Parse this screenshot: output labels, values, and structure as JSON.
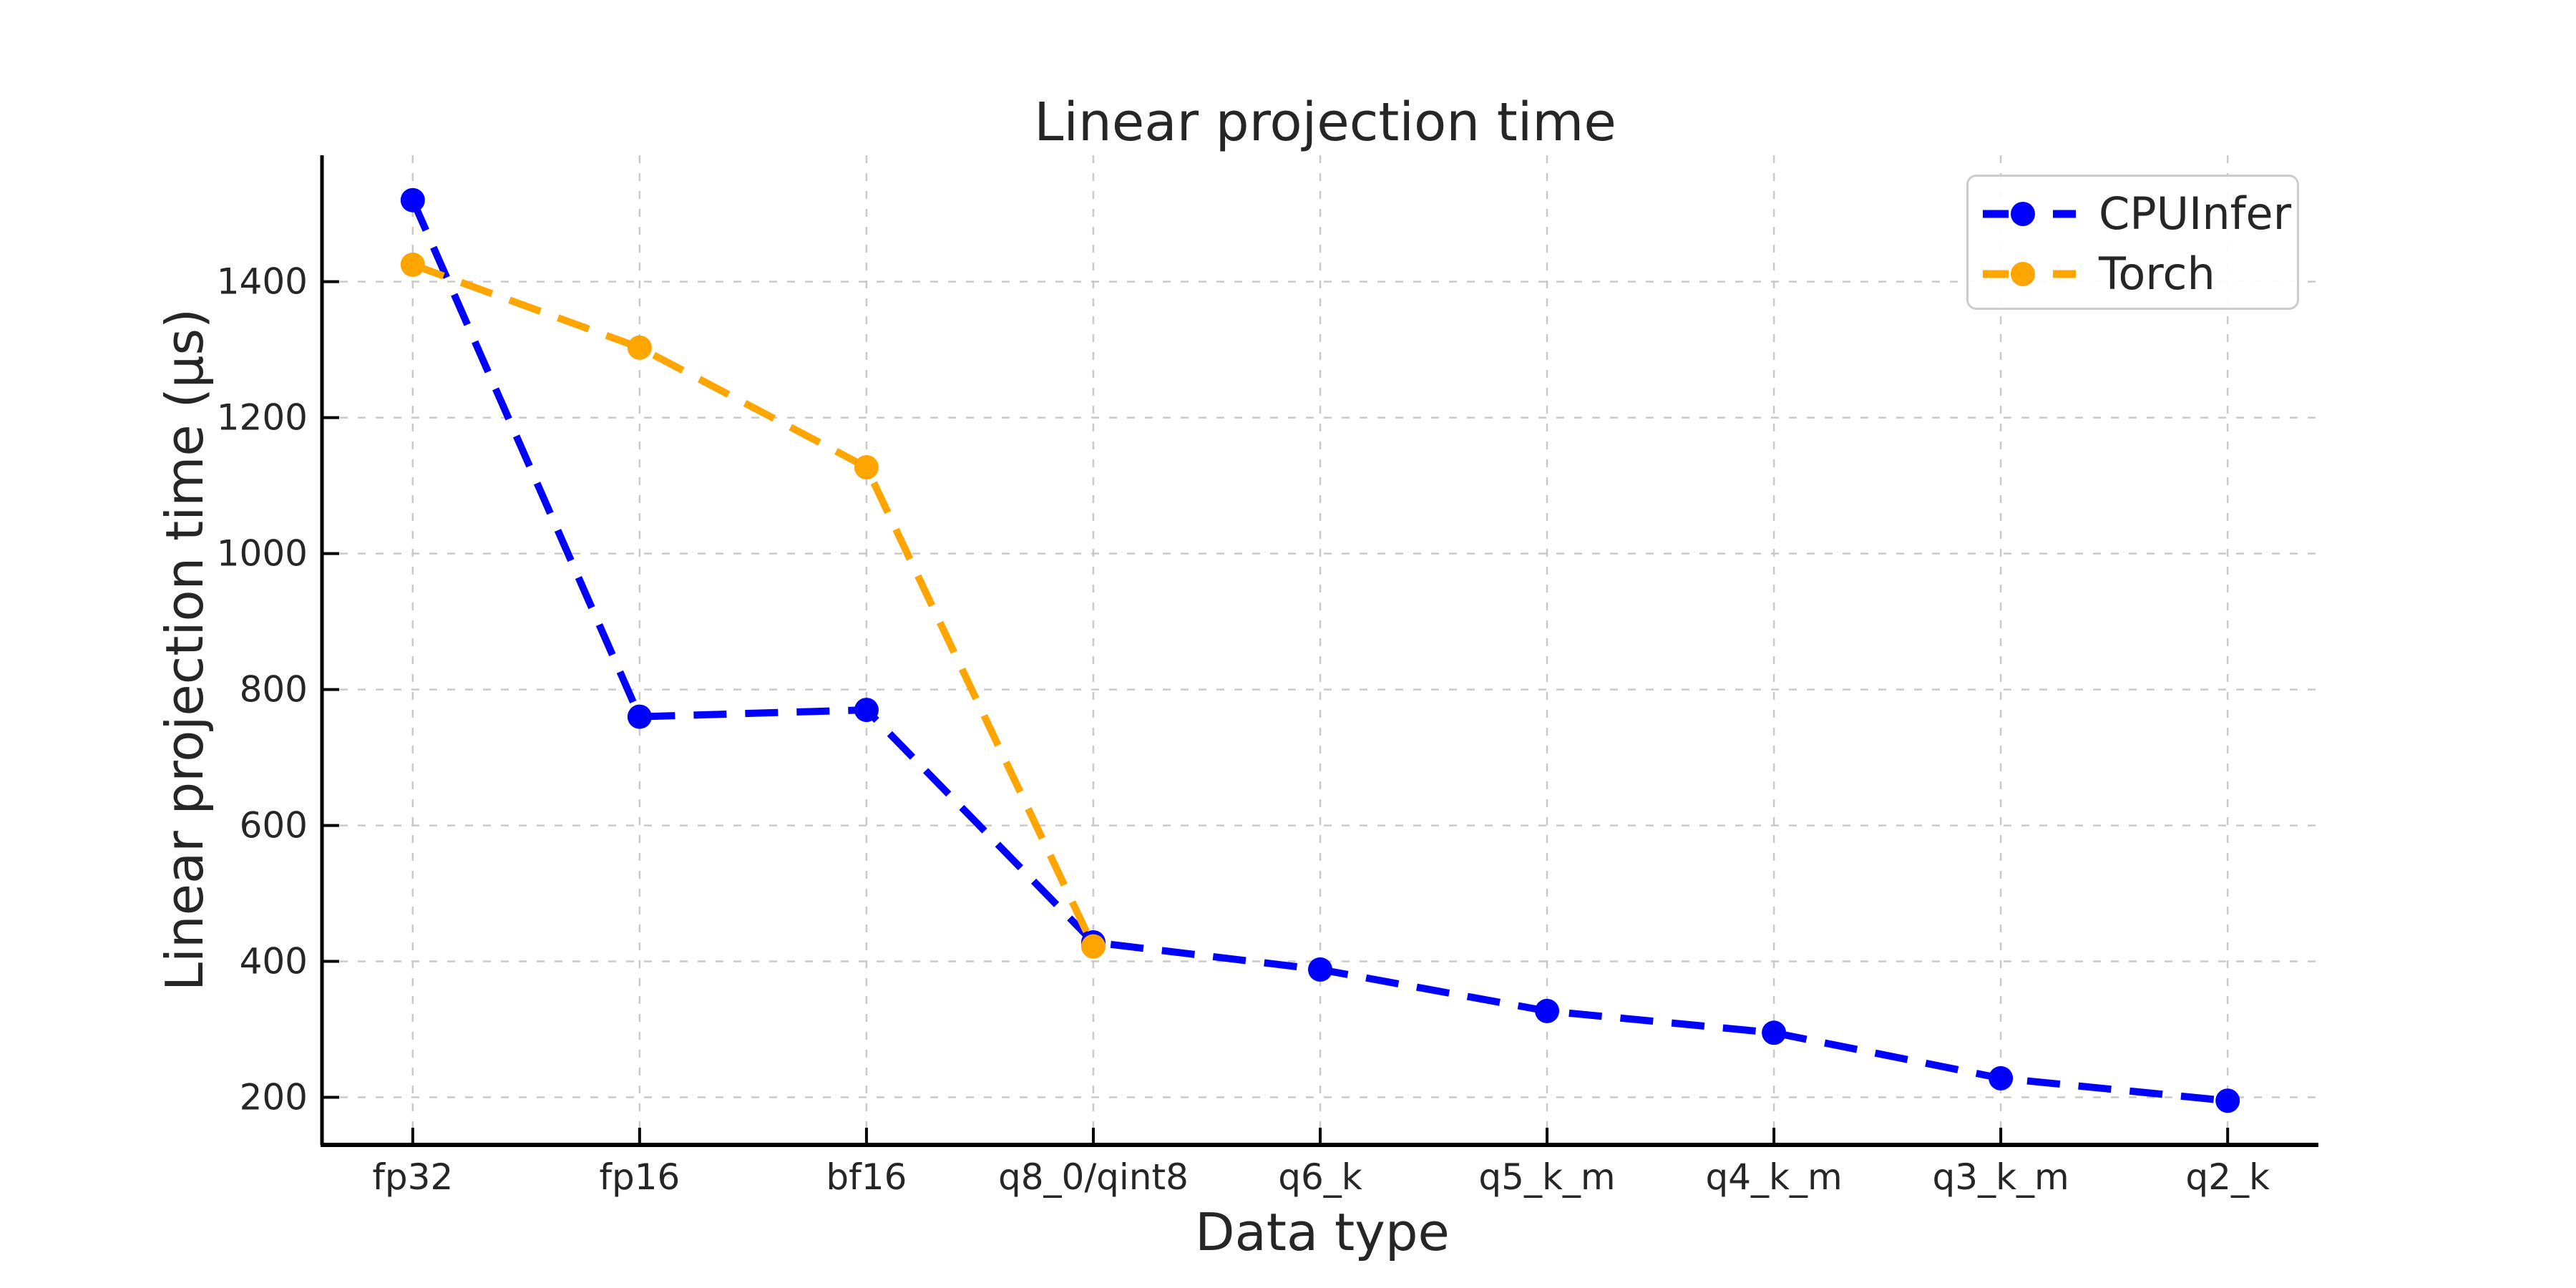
{
  "figure": {
    "background": "#ffffff",
    "plot_background": "#ffffff",
    "grid_color": "#c9c9c9",
    "spine_color": "#000000",
    "text_color": "#262626"
  },
  "chart_data": {
    "type": "line",
    "title": "Linear projection time",
    "xlabel": "Data type",
    "ylabel": "Linear projection time (µs)",
    "categories": [
      "fp32",
      "fp16",
      "bf16",
      "q8_0/qint8",
      "q6_k",
      "q5_k_m",
      "q4_k_m",
      "q3_k_m",
      "q2_k"
    ],
    "series": [
      {
        "name": "CPUInfer",
        "color": "#0000ff",
        "linestyle": "dashed",
        "marker": "circle",
        "values": [
          1520,
          760,
          770,
          428,
          388,
          327,
          295,
          228,
          195
        ]
      },
      {
        "name": "Torch",
        "color": "#ffa500",
        "linestyle": "dashed",
        "marker": "circle",
        "values": [
          1425,
          1303,
          1127,
          422,
          null,
          null,
          null,
          null,
          null
        ]
      }
    ],
    "yticks": [
      200,
      400,
      600,
      800,
      1000,
      1200,
      1400
    ],
    "ylim": [
      130,
      1586
    ],
    "grid": true,
    "grid_style": "dashed",
    "legend_position": "upper right"
  },
  "legend": {
    "items": [
      {
        "label": "CPUInfer",
        "color": "#0000ff"
      },
      {
        "label": "Torch",
        "color": "#ffa500"
      }
    ]
  }
}
